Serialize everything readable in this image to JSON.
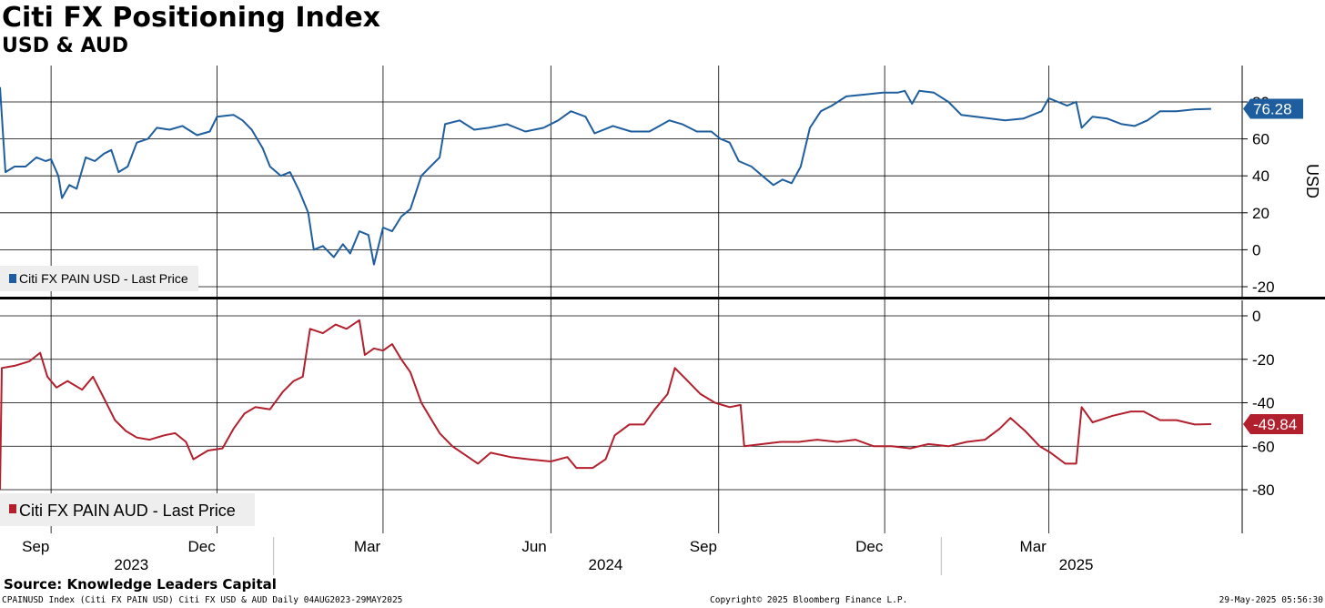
{
  "header": {
    "title": "Citi FX Positioning Index",
    "subtitle": "USD & AUD"
  },
  "footer": {
    "source": "Source: Knowledge Leaders Capital",
    "ticker_info": "CPAINUSD Index (Citi FX PAIN USD) Citi FX USD & AUD  Daily 04AUG2023-29MAY2025",
    "copyright": "Copyright© 2025 Bloomberg Finance L.P.",
    "timestamp": "29-May-2025 05:56:30"
  },
  "colors": {
    "usd": "#1f5e9e",
    "aud": "#b21f2d",
    "grid": "#000000"
  },
  "chart_data": [
    {
      "type": "line",
      "panel": "top",
      "ylabel": "USD",
      "ylim": [
        -20,
        80
      ],
      "yticks": [
        -20,
        0,
        20,
        40,
        60,
        80
      ],
      "grid": true,
      "legend_position": "bottom-left",
      "series": [
        {
          "name": "Citi FX PAIN USD - Last Price",
          "last_value": "76.28",
          "points": [
            [
              "2023-08-04",
              88
            ],
            [
              "2023-08-07",
              42
            ],
            [
              "2023-08-12",
              45
            ],
            [
              "2023-08-18",
              45
            ],
            [
              "2023-08-24",
              50
            ],
            [
              "2023-08-29",
              48
            ],
            [
              "2023-09-01",
              49
            ],
            [
              "2023-09-05",
              40
            ],
            [
              "2023-09-07",
              28
            ],
            [
              "2023-09-11",
              35
            ],
            [
              "2023-09-15",
              33
            ],
            [
              "2023-09-20",
              50
            ],
            [
              "2023-09-25",
              48
            ],
            [
              "2023-09-30",
              52
            ],
            [
              "2023-10-04",
              54
            ],
            [
              "2023-10-08",
              42
            ],
            [
              "2023-10-13",
              45
            ],
            [
              "2023-10-18",
              58
            ],
            [
              "2023-10-24",
              60
            ],
            [
              "2023-10-29",
              66
            ],
            [
              "2023-11-05",
              65
            ],
            [
              "2023-11-12",
              67
            ],
            [
              "2023-11-20",
              62
            ],
            [
              "2023-11-27",
              64
            ],
            [
              "2023-12-01",
              72
            ],
            [
              "2023-12-10",
              73
            ],
            [
              "2023-12-15",
              70
            ],
            [
              "2023-12-20",
              65
            ],
            [
              "2023-12-26",
              55
            ],
            [
              "2023-12-30",
              45
            ],
            [
              "2024-01-05",
              40
            ],
            [
              "2024-01-10",
              42
            ],
            [
              "2024-01-15",
              32
            ],
            [
              "2024-01-20",
              20
            ],
            [
              "2024-01-23",
              0
            ],
            [
              "2024-01-28",
              2
            ],
            [
              "2024-02-03",
              -4
            ],
            [
              "2024-02-08",
              3
            ],
            [
              "2024-02-12",
              -2
            ],
            [
              "2024-02-17",
              10
            ],
            [
              "2024-02-22",
              8
            ],
            [
              "2024-02-25",
              -8
            ],
            [
              "2024-03-01",
              12
            ],
            [
              "2024-03-06",
              10
            ],
            [
              "2024-03-11",
              18
            ],
            [
              "2024-03-16",
              22
            ],
            [
              "2024-03-22",
              40
            ],
            [
              "2024-03-27",
              45
            ],
            [
              "2024-04-01",
              50
            ],
            [
              "2024-04-04",
              68
            ],
            [
              "2024-04-12",
              70
            ],
            [
              "2024-04-20",
              65
            ],
            [
              "2024-04-28",
              66
            ],
            [
              "2024-05-08",
              68
            ],
            [
              "2024-05-18",
              64
            ],
            [
              "2024-05-28",
              66
            ],
            [
              "2024-06-05",
              70
            ],
            [
              "2024-06-12",
              75
            ],
            [
              "2024-06-20",
              72
            ],
            [
              "2024-06-25",
              63
            ],
            [
              "2024-07-05",
              67
            ],
            [
              "2024-07-15",
              64
            ],
            [
              "2024-07-25",
              64
            ],
            [
              "2024-08-05",
              70
            ],
            [
              "2024-08-12",
              68
            ],
            [
              "2024-08-20",
              64
            ],
            [
              "2024-08-28",
              64
            ],
            [
              "2024-09-02",
              60
            ],
            [
              "2024-09-07",
              58
            ],
            [
              "2024-09-12",
              48
            ],
            [
              "2024-09-19",
              45
            ],
            [
              "2024-09-25",
              40
            ],
            [
              "2024-10-01",
              35
            ],
            [
              "2024-10-06",
              38
            ],
            [
              "2024-10-11",
              36
            ],
            [
              "2024-10-16",
              45
            ],
            [
              "2024-10-21",
              66
            ],
            [
              "2024-10-27",
              75
            ],
            [
              "2024-11-02",
              78
            ],
            [
              "2024-11-10",
              83
            ],
            [
              "2024-11-20",
              84
            ],
            [
              "2024-11-30",
              85
            ],
            [
              "2024-12-08",
              85
            ],
            [
              "2024-12-12",
              86
            ],
            [
              "2024-12-16",
              79
            ],
            [
              "2024-12-20",
              86
            ],
            [
              "2024-12-28",
              85
            ],
            [
              "2025-01-05",
              80
            ],
            [
              "2025-01-12",
              73
            ],
            [
              "2025-01-20",
              72
            ],
            [
              "2025-01-28",
              71
            ],
            [
              "2025-02-05",
              70
            ],
            [
              "2025-02-15",
              71
            ],
            [
              "2025-02-25",
              75
            ],
            [
              "2025-03-01",
              82
            ],
            [
              "2025-03-06",
              80
            ],
            [
              "2025-03-11",
              78
            ],
            [
              "2025-03-16",
              80
            ],
            [
              "2025-03-19",
              66
            ],
            [
              "2025-03-25",
              72
            ],
            [
              "2025-04-02",
              71
            ],
            [
              "2025-04-10",
              68
            ],
            [
              "2025-04-17",
              67
            ],
            [
              "2025-04-24",
              70
            ],
            [
              "2025-05-01",
              75
            ],
            [
              "2025-05-10",
              75
            ],
            [
              "2025-05-20",
              76
            ],
            [
              "2025-05-29",
              76.28
            ]
          ]
        }
      ]
    },
    {
      "type": "line",
      "panel": "bottom",
      "ylabel": "",
      "ylim": [
        -100,
        0
      ],
      "yticks": [
        -80,
        -60,
        -40,
        -20,
        0
      ],
      "grid": true,
      "legend_position": "bottom-left",
      "series": [
        {
          "name": "Citi FX PAIN AUD - Last Price",
          "last_value": "-49.84",
          "points": [
            [
              "2023-08-04",
              -80
            ],
            [
              "2023-08-05",
              -24
            ],
            [
              "2023-08-12",
              -23
            ],
            [
              "2023-08-20",
              -21
            ],
            [
              "2023-08-26",
              -17
            ],
            [
              "2023-08-30",
              -28
            ],
            [
              "2023-09-04",
              -33
            ],
            [
              "2023-09-10",
              -30
            ],
            [
              "2023-09-18",
              -34
            ],
            [
              "2023-09-24",
              -28
            ],
            [
              "2023-09-30",
              -38
            ],
            [
              "2023-10-06",
              -48
            ],
            [
              "2023-10-12",
              -53
            ],
            [
              "2023-10-18",
              -56
            ],
            [
              "2023-10-25",
              -57
            ],
            [
              "2023-11-02",
              -55
            ],
            [
              "2023-11-08",
              -54
            ],
            [
              "2023-11-14",
              -58
            ],
            [
              "2023-11-18",
              -66
            ],
            [
              "2023-11-26",
              -62
            ],
            [
              "2023-12-04",
              -61
            ],
            [
              "2023-12-10",
              -52
            ],
            [
              "2023-12-16",
              -45
            ],
            [
              "2023-12-22",
              -42
            ],
            [
              "2023-12-30",
              -43
            ],
            [
              "2024-01-06",
              -35
            ],
            [
              "2024-01-12",
              -30
            ],
            [
              "2024-01-17",
              -28
            ],
            [
              "2024-01-21",
              -6
            ],
            [
              "2024-01-28",
              -8
            ],
            [
              "2024-02-04",
              -4
            ],
            [
              "2024-02-10",
              -6
            ],
            [
              "2024-02-17",
              -2
            ],
            [
              "2024-02-20",
              -18
            ],
            [
              "2024-02-25",
              -15
            ],
            [
              "2024-03-01",
              -16
            ],
            [
              "2024-03-06",
              -13
            ],
            [
              "2024-03-11",
              -20
            ],
            [
              "2024-03-16",
              -26
            ],
            [
              "2024-03-22",
              -40
            ],
            [
              "2024-03-27",
              -47
            ],
            [
              "2024-04-01",
              -54
            ],
            [
              "2024-04-08",
              -60
            ],
            [
              "2024-04-15",
              -64
            ],
            [
              "2024-04-22",
              -68
            ],
            [
              "2024-04-29",
              -63
            ],
            [
              "2024-05-10",
              -65
            ],
            [
              "2024-05-20",
              -66
            ],
            [
              "2024-06-01",
              -67
            ],
            [
              "2024-06-10",
              -65
            ],
            [
              "2024-06-15",
              -70
            ],
            [
              "2024-06-24",
              -70
            ],
            [
              "2024-07-01",
              -66
            ],
            [
              "2024-07-06",
              -55
            ],
            [
              "2024-07-14",
              -50
            ],
            [
              "2024-07-22",
              -50
            ],
            [
              "2024-07-28",
              -43
            ],
            [
              "2024-08-04",
              -36
            ],
            [
              "2024-08-08",
              -24
            ],
            [
              "2024-08-15",
              -30
            ],
            [
              "2024-08-22",
              -36
            ],
            [
              "2024-08-30",
              -40
            ],
            [
              "2024-09-07",
              -42
            ],
            [
              "2024-09-13",
              -41
            ],
            [
              "2024-09-15",
              -60
            ],
            [
              "2024-09-25",
              -59
            ],
            [
              "2024-10-05",
              -58
            ],
            [
              "2024-10-15",
              -58
            ],
            [
              "2024-10-25",
              -57
            ],
            [
              "2024-11-05",
              -58
            ],
            [
              "2024-11-15",
              -57
            ],
            [
              "2024-11-25",
              -60
            ],
            [
              "2024-12-05",
              -60
            ],
            [
              "2024-12-15",
              -61
            ],
            [
              "2024-12-25",
              -59
            ],
            [
              "2025-01-05",
              -60
            ],
            [
              "2025-01-15",
              -58
            ],
            [
              "2025-01-25",
              -57
            ],
            [
              "2025-02-02",
              -52
            ],
            [
              "2025-02-08",
              -47
            ],
            [
              "2025-02-16",
              -53
            ],
            [
              "2025-02-24",
              -60
            ],
            [
              "2025-03-02",
              -63
            ],
            [
              "2025-03-10",
              -68
            ],
            [
              "2025-03-16",
              -68
            ],
            [
              "2025-03-19",
              -42
            ],
            [
              "2025-03-25",
              -49
            ],
            [
              "2025-04-05",
              -46
            ],
            [
              "2025-04-15",
              -44
            ],
            [
              "2025-04-22",
              -44
            ],
            [
              "2025-05-01",
              -48
            ],
            [
              "2025-05-10",
              -48
            ],
            [
              "2025-05-20",
              -50
            ],
            [
              "2025-05-29",
              -49.84
            ]
          ]
        }
      ]
    }
  ],
  "x_axis": {
    "month_ticks": [
      {
        "label": "Sep",
        "date": "2023-09-01"
      },
      {
        "label": "Dec",
        "date": "2023-12-01"
      },
      {
        "label": "Mar",
        "date": "2024-03-01"
      },
      {
        "label": "Jun",
        "date": "2024-06-01"
      },
      {
        "label": "Sep",
        "date": "2024-09-01"
      },
      {
        "label": "Dec",
        "date": "2024-12-01"
      },
      {
        "label": "Mar",
        "date": "2025-03-01"
      }
    ],
    "year_labels": [
      {
        "label": "2023",
        "date": "2023-10-15"
      },
      {
        "label": "2024",
        "date": "2024-07-01"
      },
      {
        "label": "2025",
        "date": "2025-03-16"
      }
    ],
    "year_separators": [
      "2024-01-01",
      "2025-01-01"
    ],
    "range": [
      "2023-08-04",
      "2025-06-15"
    ]
  }
}
